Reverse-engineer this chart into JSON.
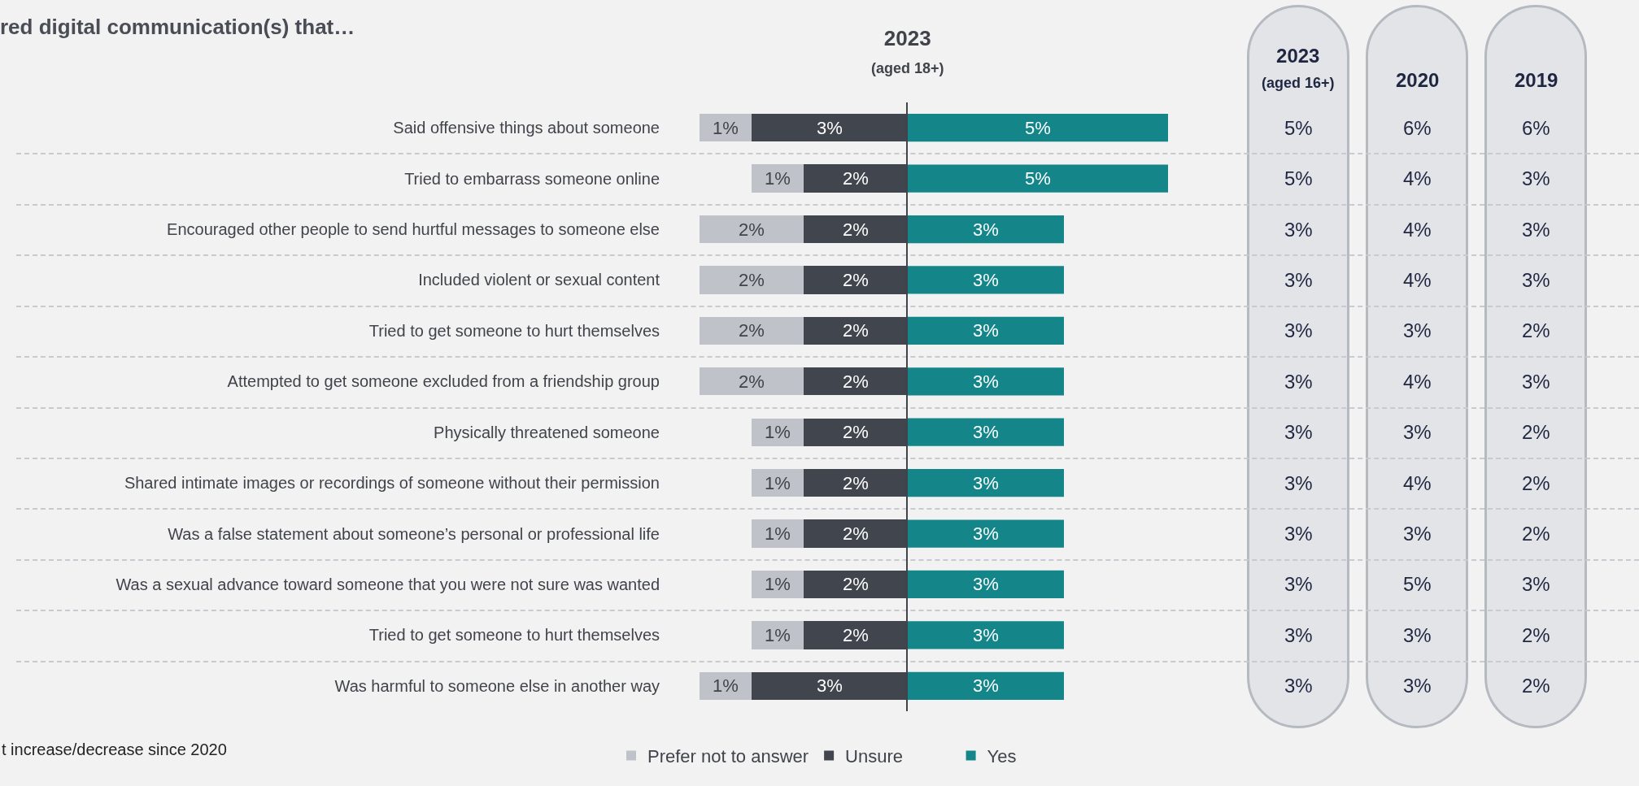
{
  "chart_data": [
    {
      "type": "bar",
      "orientation": "horizontal",
      "stacked": true,
      "title": "red digital communication(s) that…",
      "categories": [
        "Said offensive things about someone",
        "Tried to embarrass someone online",
        "Encouraged other people to send hurtful messages to someone else",
        "Included violent or sexual content",
        "Tried to get someone to hurt themselves",
        "Attempted to get someone excluded from a friendship group",
        "Physically threatened someone",
        "Shared intimate images or recordings of someone without their permission",
        "Was a false statement about someone’s personal or professional life",
        "Was a sexual advance toward someone that you were not sure was wanted",
        "Tried to get someone to hurt themselves",
        "Was harmful to someone else in another way"
      ],
      "series": [
        {
          "name": "Unsure",
          "color": "#41454d",
          "values": [
            3,
            2,
            2,
            2,
            2,
            2,
            2,
            2,
            2,
            2,
            2,
            3
          ],
          "value_labels": [
            "3%",
            "2%",
            "2%",
            "2%",
            "2%",
            "2%",
            "2%",
            "2%",
            "2%",
            "2%",
            "2%",
            "3%"
          ]
        },
        {
          "name": "Prefer not to answer",
          "color": "#bfc2c9",
          "values": [
            1,
            1,
            2,
            2,
            2,
            2,
            1,
            1,
            1,
            1,
            1,
            1
          ],
          "value_labels": [
            "1%",
            "1%",
            "2%",
            "2%",
            "2%",
            "2%",
            "1%",
            "1%",
            "1%",
            "1%",
            "1%",
            "1%"
          ]
        }
      ],
      "xlim": [
        4,
        0
      ],
      "tick_labels": "y",
      "legend": "bottom",
      "annotations": [
        "t increase/decrease since 2020"
      ]
    },
    {
      "type": "bar",
      "orientation": "horizontal",
      "subtitle": "2023\n(aged 18+)",
      "categories": [
        null,
        null,
        null,
        null,
        null,
        null,
        null,
        null,
        null,
        null,
        null,
        null
      ],
      "series": [
        {
          "name": "Yes",
          "color": "#14868a",
          "values": [
            5,
            5,
            3,
            3,
            3,
            3,
            3,
            3,
            3,
            3,
            3,
            3
          ],
          "value_labels": [
            "5%",
            "5%",
            "3%",
            "3%",
            "3%",
            "3%",
            "3%",
            "3%",
            "3%",
            "3%",
            "3%",
            "3%"
          ]
        }
      ],
      "xlim": [
        0,
        5
      ],
      "tick_labels": false,
      "legend": "bottom"
    },
    {
      "type": "heatmap",
      "categories": [
        "2023\n(aged 16+)",
        "2020",
        "2019"
      ],
      "y_categories": [
        null,
        null,
        null,
        null,
        null,
        null,
        null,
        null,
        null,
        null,
        null,
        null
      ],
      "cells": [
        [
          5,
          6,
          6
        ],
        [
          5,
          4,
          3
        ],
        [
          3,
          4,
          3
        ],
        [
          3,
          4,
          3
        ],
        [
          3,
          3,
          2
        ],
        [
          3,
          4,
          3
        ],
        [
          3,
          3,
          2
        ],
        [
          3,
          4,
          2
        ],
        [
          3,
          3,
          2
        ],
        [
          3,
          5,
          3
        ],
        [
          3,
          3,
          2
        ],
        [
          3,
          3,
          2
        ]
      ],
      "cell_labels": [
        [
          "5%",
          "6%",
          "6%"
        ],
        [
          "5%",
          "4%",
          "3%"
        ],
        [
          "3%",
          "4%",
          "3%"
        ],
        [
          "3%",
          "4%",
          "3%"
        ],
        [
          "3%",
          "3%",
          "2%"
        ],
        [
          "3%",
          "4%",
          "3%"
        ],
        [
          "3%",
          "3%",
          "2%"
        ],
        [
          "3%",
          "4%",
          "2%"
        ],
        [
          "3%",
          "3%",
          "2%"
        ],
        [
          "3%",
          "5%",
          "3%"
        ],
        [
          "3%",
          "3%",
          "2%"
        ],
        [
          "3%",
          "3%",
          "2%"
        ]
      ]
    }
  ]
}
